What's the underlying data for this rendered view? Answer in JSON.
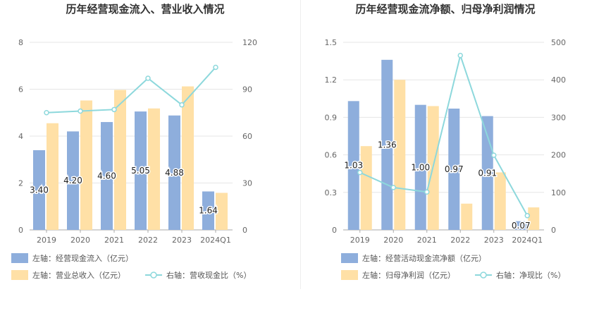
{
  "charts": [
    {
      "title": "历年经营现金流入、营业收入情况",
      "categories": [
        "2019",
        "2020",
        "2021",
        "2022",
        "2023",
        "2024Q1"
      ],
      "left_ticks": [
        "0",
        "2",
        "4",
        "6",
        "8"
      ],
      "right_ticks": [
        "0",
        "30",
        "60",
        "90",
        "120"
      ],
      "legend": [
        {
          "label": "左轴：经营现金流入（亿元）",
          "kind": "bar",
          "color": "#8eaedc"
        },
        {
          "label": "左轴：营业总收入（亿元）",
          "kind": "bar",
          "color": "#ffe0a6"
        },
        {
          "label": "右轴：营收现金比（%）",
          "kind": "line",
          "color": "#8dd8dc"
        }
      ]
    },
    {
      "title": "历年经营现金流净额、归母净利润情况",
      "categories": [
        "2019",
        "2020",
        "2021",
        "2022",
        "2023",
        "2024Q1"
      ],
      "left_ticks": [
        "0",
        "0.3",
        "0.6",
        "0.9",
        "1.2",
        "1.5"
      ],
      "right_ticks": [
        "0",
        "100",
        "200",
        "300",
        "400",
        "500"
      ],
      "legend": [
        {
          "label": "左轴：经营活动现金流净额（亿元）",
          "kind": "bar",
          "color": "#8eaedc"
        },
        {
          "label": "左轴：归母净利润（亿元）",
          "kind": "bar",
          "color": "#ffe0a6"
        },
        {
          "label": "右轴：净现比（%）",
          "kind": "line",
          "color": "#8dd8dc"
        }
      ]
    }
  ],
  "chart_data": [
    {
      "type": "bar",
      "title": "历年经营现金流入、营业收入情况",
      "categories": [
        "2019",
        "2020",
        "2021",
        "2022",
        "2023",
        "2024Q1"
      ],
      "ylim_left": [
        0,
        8
      ],
      "ylim_right": [
        0,
        120
      ],
      "series": [
        {
          "name": "左轴：经营现金流入（亿元）",
          "axis": "left",
          "type": "bar",
          "values": [
            3.4,
            4.2,
            4.6,
            5.05,
            4.88,
            1.64
          ],
          "labels": [
            "3.40",
            "4.20",
            "4.60",
            "5.05",
            "4.88",
            "1.64"
          ]
        },
        {
          "name": "左轴：营业总收入（亿元）",
          "axis": "left",
          "type": "bar",
          "values": [
            4.55,
            5.52,
            5.97,
            5.18,
            6.12,
            1.58
          ]
        },
        {
          "name": "右轴：营收现金比（%）",
          "axis": "right",
          "type": "line",
          "values": [
            75,
            76,
            77,
            97,
            80,
            104
          ]
        }
      ]
    },
    {
      "type": "bar",
      "title": "历年经营现金流净额、归母净利润情况",
      "categories": [
        "2019",
        "2020",
        "2021",
        "2022",
        "2023",
        "2024Q1"
      ],
      "ylim_left": [
        0,
        1.5
      ],
      "ylim_right": [
        0,
        500
      ],
      "series": [
        {
          "name": "左轴：经营活动现金流净额（亿元）",
          "axis": "left",
          "type": "bar",
          "values": [
            1.03,
            1.36,
            1.0,
            0.97,
            0.91,
            0.07
          ],
          "labels": [
            "1.03",
            "1.36",
            "1.00",
            "0.97",
            "0.91",
            "0.07"
          ]
        },
        {
          "name": "左轴：归母净利润（亿元）",
          "axis": "left",
          "type": "bar",
          "values": [
            0.67,
            1.2,
            0.99,
            0.21,
            0.46,
            0.18
          ]
        },
        {
          "name": "右轴：净现比（%）",
          "axis": "right",
          "type": "line",
          "values": [
            153,
            113,
            101,
            465,
            199,
            38
          ]
        }
      ]
    }
  ]
}
